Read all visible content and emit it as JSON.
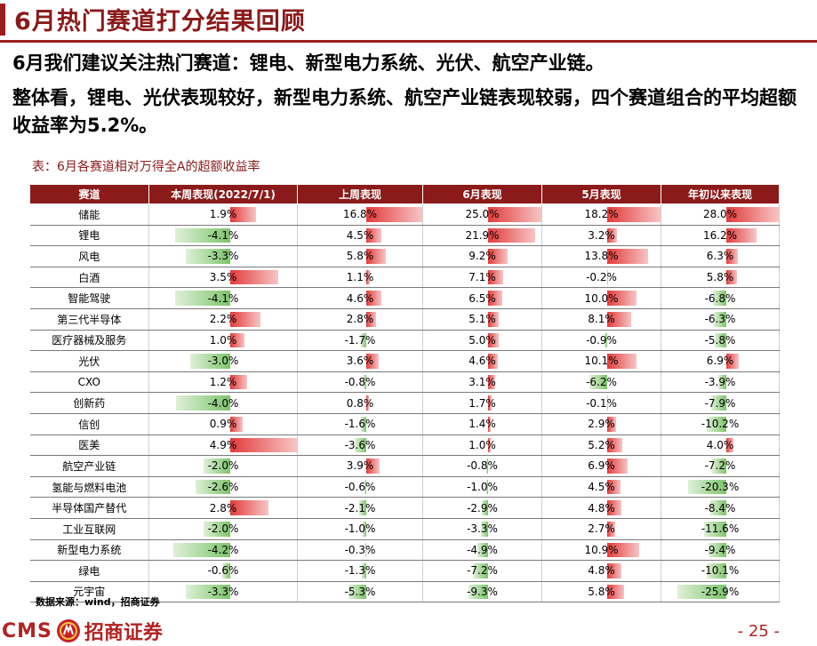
{
  "page": {
    "title": "6月热门赛道打分结果回顾",
    "summary_line1": "6月我们建议关注热门赛道：锂电、新型电力系统、光伏、航空产业链。",
    "summary_line2": "整体看，锂电、光伏表现较好，新型电力系统、航空产业链表现较弱，四个赛道组合的平均超额收益率为5.2%。",
    "table_caption": "表：6月各赛道相对万得全A的超额收益率",
    "source": "数据来源：wind，招商证券",
    "logo_cms": "CMS",
    "logo_company": "招商证券",
    "page_number": "- 25 -",
    "colors": {
      "brand": "#8B1A1A",
      "positive_bar": "#e23b3b",
      "negative_bar": "#7cc46a"
    }
  },
  "table": {
    "headers": [
      "赛道",
      "本周表现(2022/7/1)",
      "上周表现",
      "6月表现",
      "5月表现",
      "年初以来表现"
    ],
    "rows": [
      {
        "name": "储能",
        "values": [
          1.9,
          16.8,
          25.0,
          18.2,
          28.0
        ]
      },
      {
        "name": "锂电",
        "values": [
          -4.1,
          4.5,
          21.9,
          3.2,
          16.2
        ]
      },
      {
        "name": "风电",
        "values": [
          -3.3,
          5.8,
          9.2,
          13.8,
          6.3
        ]
      },
      {
        "name": "白酒",
        "values": [
          3.5,
          1.1,
          7.1,
          -0.2,
          5.8
        ]
      },
      {
        "name": "智能驾驶",
        "values": [
          -4.1,
          4.6,
          6.5,
          10.0,
          -6.8
        ]
      },
      {
        "name": "第三代半导体",
        "values": [
          2.2,
          2.8,
          5.1,
          8.1,
          -6.3
        ]
      },
      {
        "name": "医疗器械及服务",
        "values": [
          1.0,
          -1.7,
          5.0,
          -0.9,
          -5.8
        ]
      },
      {
        "name": "光伏",
        "values": [
          -3.0,
          3.6,
          4.6,
          10.1,
          6.9
        ]
      },
      {
        "name": "CXO",
        "values": [
          1.2,
          -0.8,
          3.1,
          -6.2,
          -3.9
        ]
      },
      {
        "name": "创新药",
        "values": [
          -4.0,
          0.8,
          1.7,
          -0.1,
          -7.9
        ]
      },
      {
        "name": "信创",
        "values": [
          0.9,
          -1.6,
          1.4,
          2.9,
          -10.2
        ]
      },
      {
        "name": "医美",
        "values": [
          4.9,
          -3.6,
          1.0,
          5.2,
          4.0
        ]
      },
      {
        "name": "航空产业链",
        "values": [
          -2.0,
          3.9,
          -0.8,
          6.9,
          -7.2
        ]
      },
      {
        "name": "氢能与燃料电池",
        "values": [
          -2.6,
          -0.6,
          -1.0,
          4.5,
          -20.3
        ]
      },
      {
        "name": "半导体国产替代",
        "values": [
          2.8,
          -2.1,
          -2.9,
          4.8,
          -8.4
        ]
      },
      {
        "name": "工业互联网",
        "values": [
          -2.0,
          -1.0,
          -3.3,
          2.7,
          -11.6
        ]
      },
      {
        "name": "新型电力系统",
        "values": [
          -4.2,
          -0.3,
          -4.9,
          10.9,
          -9.4
        ]
      },
      {
        "name": "绿电",
        "values": [
          -0.6,
          -1.3,
          -7.2,
          4.8,
          -10.1
        ]
      },
      {
        "name": "元宇宙",
        "values": [
          -3.3,
          -5.3,
          -9.3,
          5.8,
          -25.9
        ]
      }
    ]
  }
}
